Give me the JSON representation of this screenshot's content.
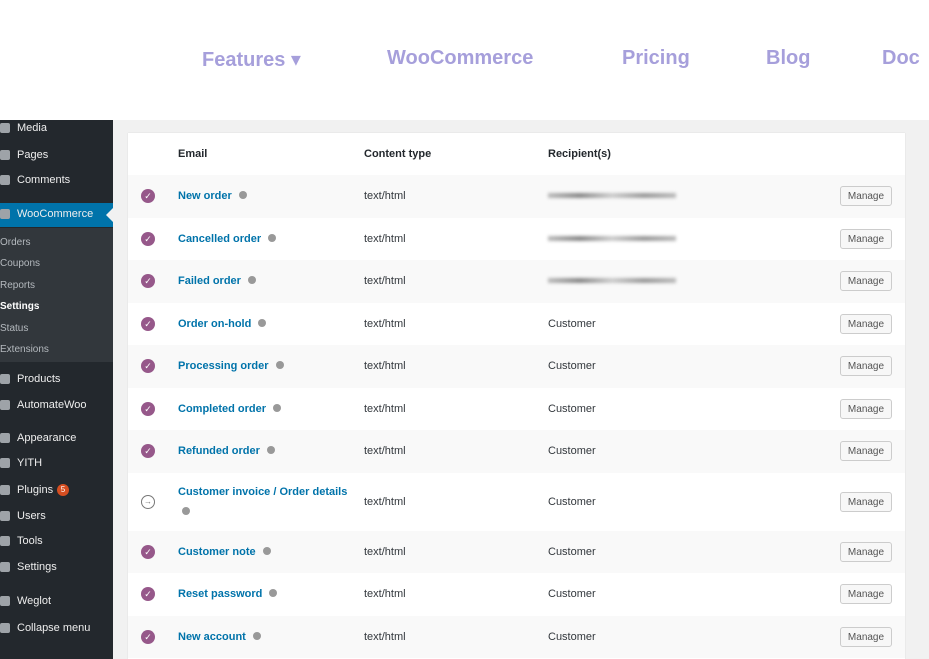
{
  "nav": {
    "items": [
      "Features ▾",
      "WooCommerce",
      "Pricing",
      "Blog",
      "Doc"
    ]
  },
  "sidebar": {
    "items": [
      "Media",
      "Pages",
      "Comments",
      "WooCommerce",
      "Orders",
      "Coupons",
      "Reports",
      "Settings",
      "Status",
      "Extensions",
      "Products",
      "AutomateWoo",
      "Appearance",
      "YITH",
      "Plugins",
      "Users",
      "Tools",
      "Settings",
      "Weglot",
      "Collapse menu"
    ],
    "plugins_badge": "5"
  },
  "table": {
    "headers": [
      "Email",
      "Content type",
      "Recipient(s)"
    ],
    "button": "Manage",
    "rows": [
      {
        "email": "New order",
        "content_type": "text/html",
        "enabled": true
      },
      {
        "email": "Cancelled order",
        "content_type": "text/html",
        "enabled": true
      },
      {
        "email": "Failed order",
        "content_type": "text/html",
        "enabled": true
      },
      {
        "email": "Order on-hold",
        "content_type": "text/html",
        "recipient": "Customer",
        "enabled": true
      },
      {
        "email": "Processing order",
        "content_type": "text/html",
        "recipient": "Customer",
        "enabled": true
      },
      {
        "email": "Completed order",
        "content_type": "text/html",
        "recipient": "Customer",
        "enabled": true
      },
      {
        "email": "Refunded order",
        "content_type": "text/html",
        "recipient": "Customer",
        "enabled": true
      },
      {
        "email": "Customer invoice / Order details",
        "content_type": "text/html",
        "recipient": "Customer",
        "enabled": false
      },
      {
        "email": "Customer note",
        "content_type": "text/html",
        "recipient": "Customer",
        "enabled": true
      },
      {
        "email": "Reset password",
        "content_type": "text/html",
        "recipient": "Customer",
        "enabled": true
      },
      {
        "email": "New account",
        "content_type": "text/html",
        "recipient": "Customer",
        "enabled": true
      }
    ]
  }
}
